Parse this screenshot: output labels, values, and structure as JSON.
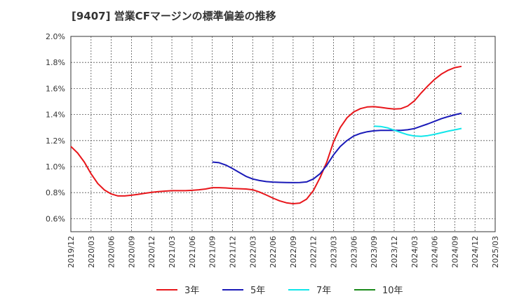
{
  "chart_data": {
    "type": "line",
    "title": "[9407]  営業CFマージンの標準偏差の推移",
    "xlabel": "",
    "ylabel": "",
    "ylim": [
      0.5,
      2.0
    ],
    "y_ticks": [
      "2.0%",
      "1.8%",
      "1.6%",
      "1.4%",
      "1.2%",
      "1.0%",
      "0.8%",
      "0.6%"
    ],
    "x_ticks": [
      "2019/12",
      "2020/03",
      "2020/06",
      "2020/09",
      "2020/12",
      "2021/03",
      "2021/06",
      "2021/09",
      "2021/12",
      "2022/03",
      "2022/06",
      "2022/09",
      "2022/12",
      "2023/03",
      "2023/06",
      "2023/09",
      "2023/12",
      "2024/03",
      "2024/06",
      "2024/09",
      "2024/12",
      "2025/03"
    ],
    "x_range": [
      "2019/12",
      "2025/03"
    ],
    "grid": true,
    "legend_position": "bottom",
    "series": [
      {
        "name": "3年",
        "color": "#e8161b",
        "points": [
          [
            "2019/12",
            1.155
          ],
          [
            "2020/01",
            1.105
          ],
          [
            "2020/02",
            1.035
          ],
          [
            "2020/03",
            0.945
          ],
          [
            "2020/04",
            0.87
          ],
          [
            "2020/05",
            0.82
          ],
          [
            "2020/06",
            0.79
          ],
          [
            "2020/07",
            0.775
          ],
          [
            "2020/08",
            0.775
          ],
          [
            "2020/09",
            0.78
          ],
          [
            "2020/10",
            0.787
          ],
          [
            "2020/11",
            0.795
          ],
          [
            "2020/12",
            0.802
          ],
          [
            "2021/01",
            0.808
          ],
          [
            "2021/02",
            0.812
          ],
          [
            "2021/03",
            0.815
          ],
          [
            "2021/04",
            0.815
          ],
          [
            "2021/05",
            0.815
          ],
          [
            "2021/06",
            0.818
          ],
          [
            "2021/07",
            0.822
          ],
          [
            "2021/08",
            0.828
          ],
          [
            "2021/09",
            0.838
          ],
          [
            "2021/10",
            0.838
          ],
          [
            "2021/11",
            0.836
          ],
          [
            "2021/12",
            0.832
          ],
          [
            "2022/01",
            0.83
          ],
          [
            "2022/02",
            0.828
          ],
          [
            "2022/03",
            0.822
          ],
          [
            "2022/04",
            0.805
          ],
          [
            "2022/05",
            0.782
          ],
          [
            "2022/06",
            0.758
          ],
          [
            "2022/07",
            0.737
          ],
          [
            "2022/08",
            0.722
          ],
          [
            "2022/09",
            0.715
          ],
          [
            "2022/10",
            0.72
          ],
          [
            "2022/11",
            0.75
          ],
          [
            "2022/12",
            0.815
          ],
          [
            "2023/01",
            0.915
          ],
          [
            "2023/02",
            1.035
          ],
          [
            "2023/03",
            1.19
          ],
          [
            "2023/04",
            1.3
          ],
          [
            "2023/05",
            1.375
          ],
          [
            "2023/06",
            1.42
          ],
          [
            "2023/07",
            1.445
          ],
          [
            "2023/08",
            1.458
          ],
          [
            "2023/09",
            1.46
          ],
          [
            "2023/10",
            1.455
          ],
          [
            "2023/11",
            1.448
          ],
          [
            "2023/12",
            1.442
          ],
          [
            "2024/01",
            1.445
          ],
          [
            "2024/02",
            1.465
          ],
          [
            "2024/03",
            1.505
          ],
          [
            "2024/04",
            1.565
          ],
          [
            "2024/05",
            1.62
          ],
          [
            "2024/06",
            1.67
          ],
          [
            "2024/07",
            1.71
          ],
          [
            "2024/08",
            1.74
          ],
          [
            "2024/09",
            1.76
          ],
          [
            "2024/10",
            1.77
          ]
        ]
      },
      {
        "name": "5年",
        "color": "#1a1ab8",
        "points": [
          [
            "2021/09",
            1.035
          ],
          [
            "2021/10",
            1.03
          ],
          [
            "2021/11",
            1.012
          ],
          [
            "2021/12",
            0.985
          ],
          [
            "2022/01",
            0.955
          ],
          [
            "2022/02",
            0.925
          ],
          [
            "2022/03",
            0.905
          ],
          [
            "2022/04",
            0.893
          ],
          [
            "2022/05",
            0.885
          ],
          [
            "2022/06",
            0.881
          ],
          [
            "2022/07",
            0.879
          ],
          [
            "2022/08",
            0.878
          ],
          [
            "2022/09",
            0.877
          ],
          [
            "2022/10",
            0.878
          ],
          [
            "2022/11",
            0.882
          ],
          [
            "2022/12",
            0.905
          ],
          [
            "2023/01",
            0.945
          ],
          [
            "2023/02",
            1.01
          ],
          [
            "2023/03",
            1.09
          ],
          [
            "2023/04",
            1.155
          ],
          [
            "2023/05",
            1.2
          ],
          [
            "2023/06",
            1.235
          ],
          [
            "2023/07",
            1.255
          ],
          [
            "2023/08",
            1.268
          ],
          [
            "2023/09",
            1.275
          ],
          [
            "2023/10",
            1.278
          ],
          [
            "2023/11",
            1.278
          ],
          [
            "2023/12",
            1.278
          ],
          [
            "2024/01",
            1.278
          ],
          [
            "2024/02",
            1.283
          ],
          [
            "2024/03",
            1.292
          ],
          [
            "2024/04",
            1.31
          ],
          [
            "2024/05",
            1.328
          ],
          [
            "2024/06",
            1.348
          ],
          [
            "2024/07",
            1.368
          ],
          [
            "2024/08",
            1.384
          ],
          [
            "2024/09",
            1.398
          ],
          [
            "2024/10",
            1.41
          ]
        ]
      },
      {
        "name": "7年",
        "color": "#10e6ea",
        "points": [
          [
            "2023/09",
            1.31
          ],
          [
            "2023/10",
            1.308
          ],
          [
            "2023/11",
            1.298
          ],
          [
            "2023/12",
            1.28
          ],
          [
            "2024/01",
            1.262
          ],
          [
            "2024/02",
            1.245
          ],
          [
            "2024/03",
            1.235
          ],
          [
            "2024/04",
            1.232
          ],
          [
            "2024/05",
            1.238
          ],
          [
            "2024/06",
            1.248
          ],
          [
            "2024/07",
            1.26
          ],
          [
            "2024/08",
            1.272
          ],
          [
            "2024/09",
            1.282
          ],
          [
            "2024/10",
            1.293
          ]
        ]
      },
      {
        "name": "10年",
        "color": "#1b8a1b",
        "points": []
      }
    ]
  }
}
